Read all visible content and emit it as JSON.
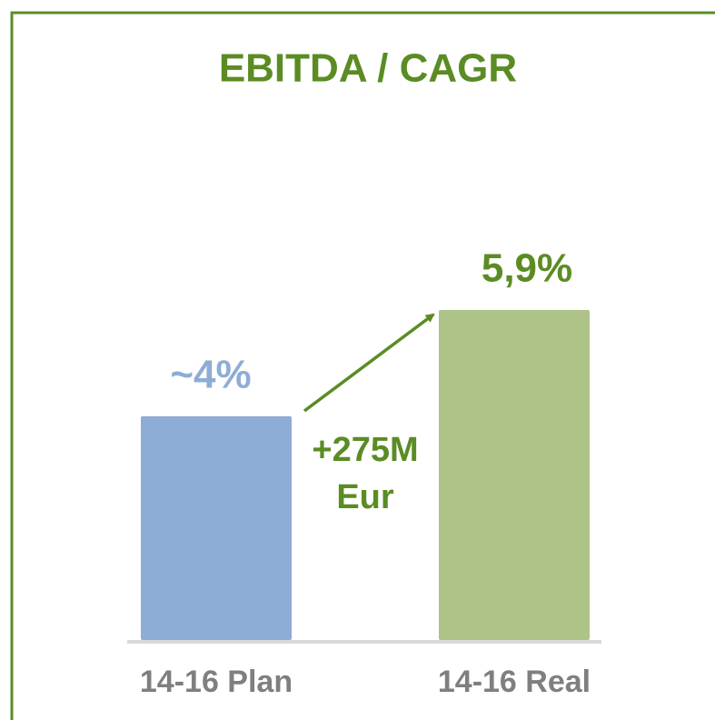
{
  "chart_data": {
    "type": "bar",
    "title": "EBITDA / CAGR",
    "categories": [
      "14-16 Plan",
      "14-16 Real"
    ],
    "values": [
      4,
      5.9
    ],
    "value_labels": [
      "~4%",
      "5,9%"
    ],
    "colors": [
      "#8eadd6",
      "#aec388"
    ],
    "label_colors": [
      "#8eadd6",
      "#5b8c24"
    ],
    "annotation": [
      "+275M",
      "Eur"
    ]
  }
}
